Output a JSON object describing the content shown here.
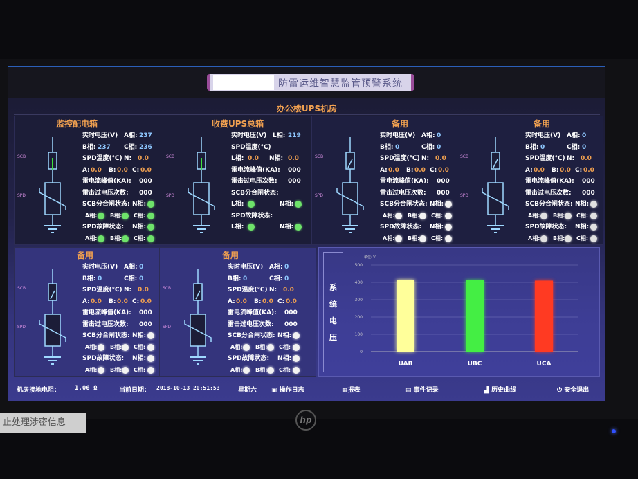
{
  "header": {
    "title": "防雷运维智慧监管预警系统",
    "room": "办公楼UPS机房"
  },
  "labels": {
    "realtime_voltage": "实时电压(V)",
    "spd_temp": "SPD温度(℃)",
    "peak_current": "雷电流峰值(KA):",
    "surge_count": "雷击过电压次数:",
    "scb_state": "SCB分合闸状态:",
    "spd_fault": "SPD故障状态:",
    "phase_a": "A相:",
    "phase_b": "B相:",
    "phase_c": "C相:",
    "phase_n": "N相:",
    "phase_l": "L相:",
    "t_n": "N:",
    "t_a": "A:",
    "t_b": "B:",
    "t_c": "C:",
    "scb": "SCB",
    "spd": "SPD"
  },
  "panels": [
    {
      "title": "监控配电箱",
      "type": "three",
      "voltage": {
        "A": "237",
        "B": "237",
        "C": "236"
      },
      "temp": {
        "N": "0.0",
        "A": "0.0",
        "B": "0.0",
        "C": "0.0"
      },
      "peak": "000",
      "count": "000",
      "indicator_color": "#6ee36a"
    },
    {
      "title": "收费UPS总箱",
      "type": "single",
      "voltage": {
        "L": "219"
      },
      "temp": {
        "L": "0.0",
        "N": "0.0"
      },
      "peak": "000",
      "count": "000",
      "indicator_color": "#6ee36a"
    },
    {
      "title": "备用",
      "type": "three",
      "voltage": {
        "A": "0",
        "B": "0",
        "C": "0"
      },
      "temp": {
        "N": "0.0",
        "A": "0.0",
        "B": "0.0",
        "C": "0.0"
      },
      "peak": "000",
      "count": "000",
      "indicator_color": "#f2f2f2"
    },
    {
      "title": "备用",
      "type": "three",
      "voltage": {
        "A": "0",
        "B": "0",
        "C": "0"
      },
      "temp": {
        "N": "0.0",
        "A": "0.0",
        "B": "0.0",
        "C": "0.0"
      },
      "peak": "000",
      "count": "000",
      "indicator_color": "#e0e0e0"
    },
    {
      "title": "备用",
      "type": "three",
      "voltage": {
        "A": "0",
        "B": "0",
        "C": "0"
      },
      "temp": {
        "N": "0.0",
        "A": "0.0",
        "B": "0.0",
        "C": "0.0"
      },
      "peak": "000",
      "count": "000",
      "indicator_color": "#f2f2f2"
    },
    {
      "title": "备用",
      "type": "three",
      "voltage": {
        "A": "0",
        "B": "0",
        "C": "0"
      },
      "temp": {
        "N": "0.0",
        "A": "0.0",
        "B": "0.0",
        "C": "0.0"
      },
      "peak": "000",
      "count": "000",
      "indicator_color": "#f2f2f2"
    }
  ],
  "chart_data": {
    "type": "bar",
    "title": "系统电压",
    "ylabel": "单位: V",
    "categories": [
      "UAB",
      "UBC",
      "UCA"
    ],
    "values": [
      415,
      412,
      410
    ],
    "colors": [
      "#ffff9a",
      "#44ee44",
      "#ff3a22"
    ],
    "ylim": [
      0,
      500
    ],
    "yticks": [
      "0",
      "100",
      "200",
      "300",
      "400",
      "500"
    ],
    "grid": true
  },
  "footer": {
    "ground_label": "机房接地电阻：",
    "ground_value": "1.06 Ω",
    "date_label": "当前日期：",
    "datetime": "2018-10-13 20:51:53",
    "weekday": "星期六",
    "buttons": [
      "操作日志",
      "报表",
      "事件记录",
      "历史曲线",
      "安全退出"
    ]
  },
  "background": {
    "sticker": "止处理涉密信息",
    "brand": "hp"
  }
}
